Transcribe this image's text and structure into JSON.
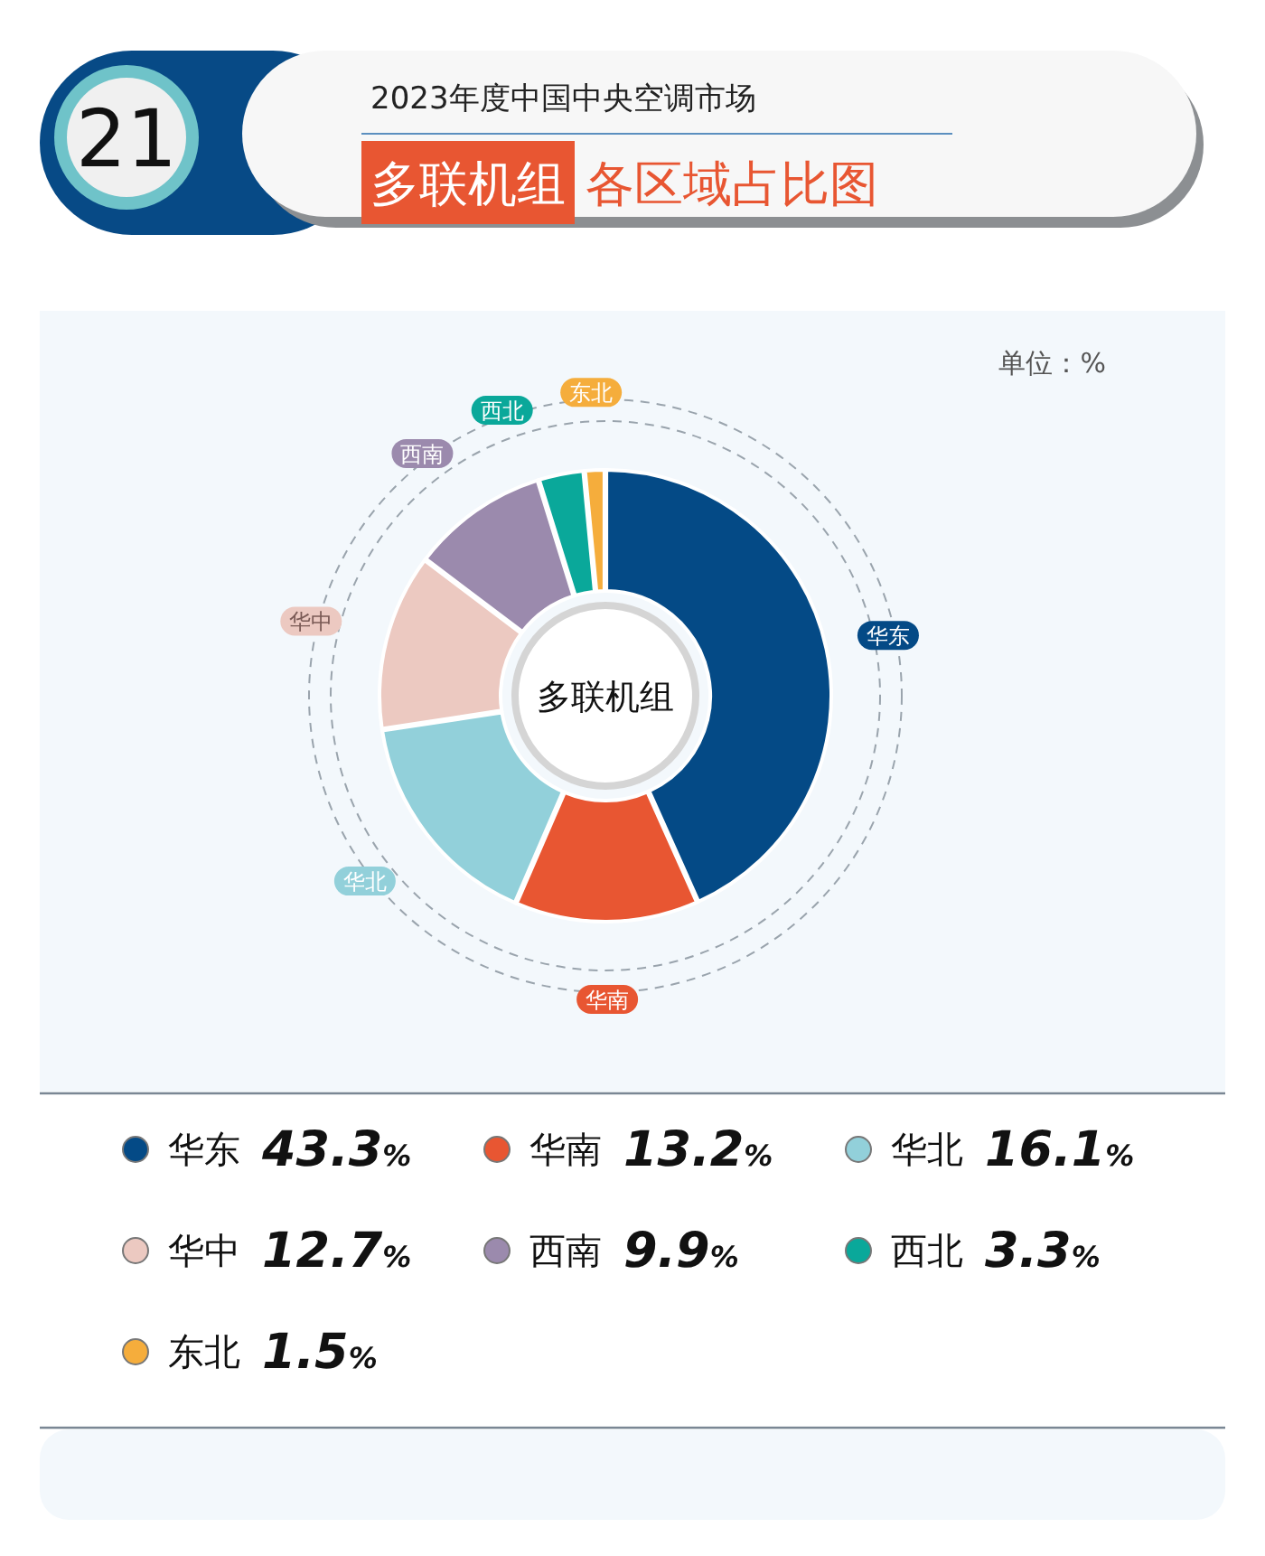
{
  "chart_data": {
    "type": "donut",
    "subtitle": "2023年度中国中央空调市场",
    "title": "多联机组 各区域占比图",
    "annotations": [
      "21",
      "单位：%",
      "多联机组"
    ],
    "categories": [
      "华东",
      "华南",
      "华北",
      "华中",
      "西南",
      "西北",
      "东北"
    ],
    "values": [
      43.3,
      13.2,
      16.1,
      12.7,
      9.9,
      3.3,
      1.5
    ],
    "colors": [
      "#044a86",
      "#e85632",
      "#92d0da",
      "#ecc9c1",
      "#9b8aad",
      "#0aa89a",
      "#f5ad3c"
    ],
    "value_labels": [
      "43.3%",
      "13.2%",
      "16.1%",
      "12.7%",
      "9.9%",
      "3.3%",
      "1.5%"
    ],
    "legend": "bottom"
  }
}
